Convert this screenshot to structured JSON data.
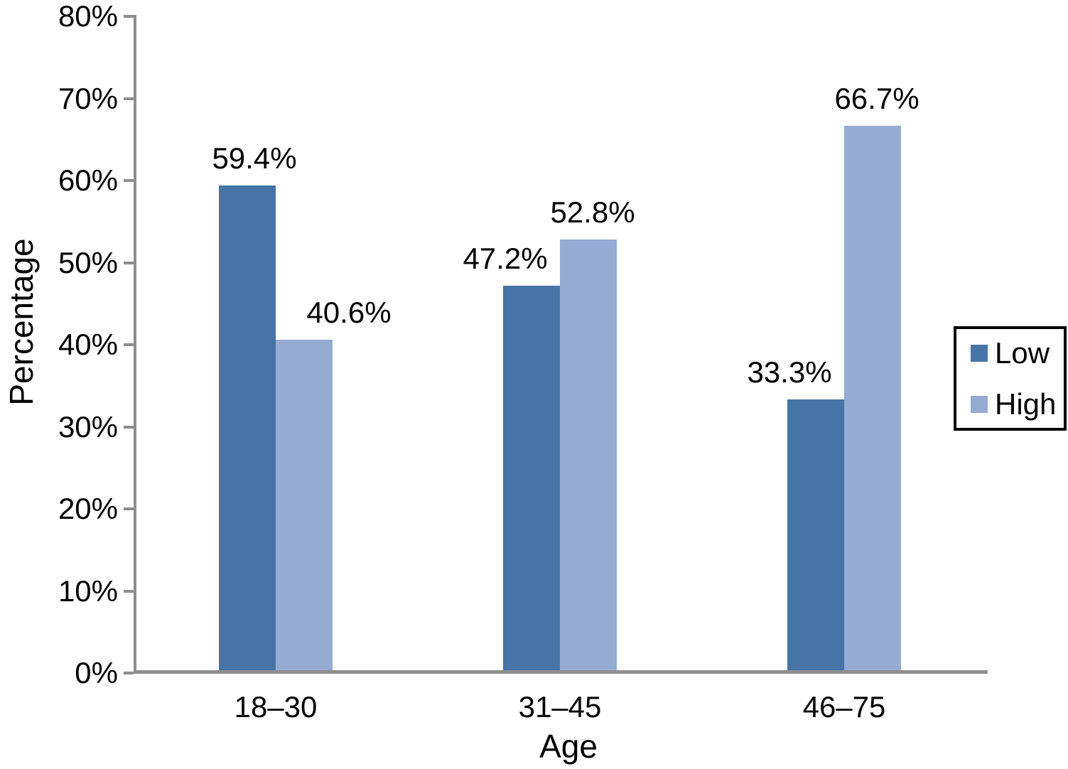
{
  "chart_data": {
    "type": "bar",
    "title": "",
    "xlabel": "Age",
    "ylabel": "Percentage",
    "categories": [
      "18–30",
      "31–45",
      "46–75"
    ],
    "series": [
      {
        "name": "Low",
        "color": "#4674a6",
        "values": [
          59.4,
          47.2,
          33.3
        ],
        "labels": [
          "59.4%",
          "47.2%",
          "33.3%"
        ]
      },
      {
        "name": "High",
        "color": "#95abd2",
        "values": [
          40.6,
          52.8,
          66.7
        ],
        "labels": [
          "40.6%",
          "52.8%",
          "66.7%"
        ]
      }
    ],
    "ylim": [
      0,
      80
    ],
    "ytick_step": 10,
    "ytick_labels": [
      "0%",
      "10%",
      "20%",
      "30%",
      "40%",
      "50%",
      "60%",
      "70%",
      "80%"
    ],
    "grid": false,
    "legend_position": "right"
  },
  "colors": {
    "axis": "#8e8e8e",
    "text": "#000000",
    "legend_border": "#000000",
    "background": "#ffffff"
  }
}
